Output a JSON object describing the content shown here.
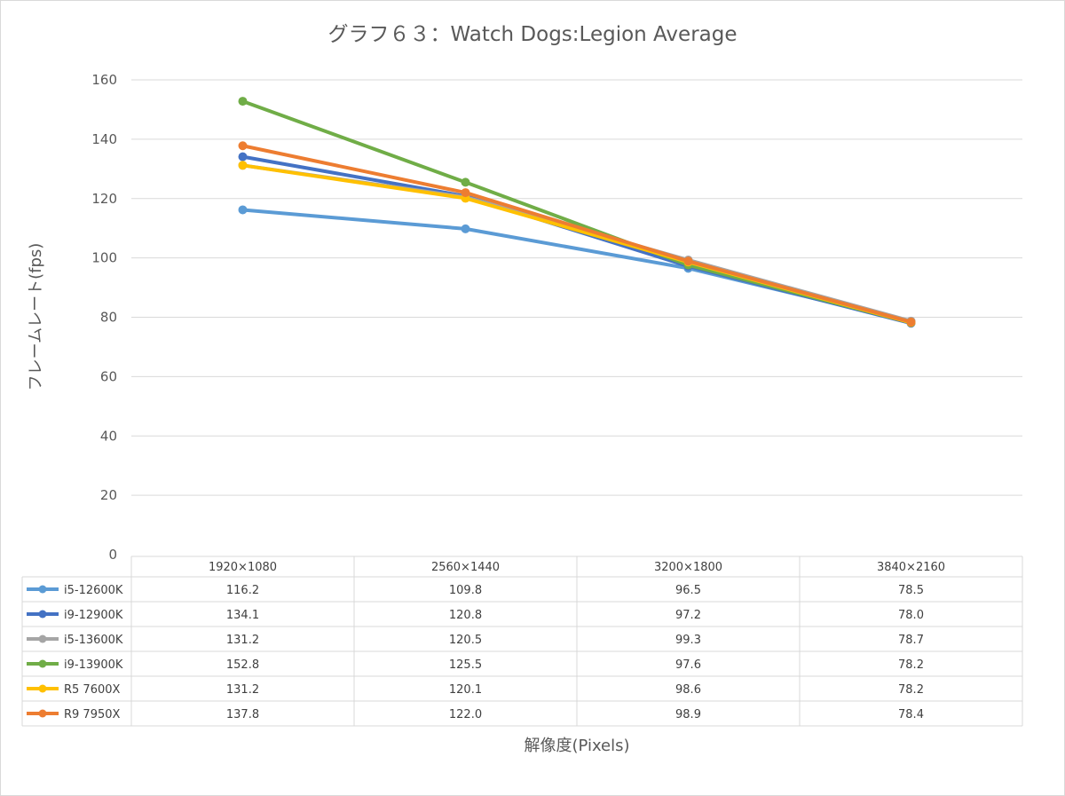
{
  "chart_data": {
    "type": "line",
    "title": "グラフ６３：Watch Dogs:Legion Average",
    "xlabel": "解像度(Pixels)",
    "ylabel": "フレームレート(fps)",
    "ylim": [
      0,
      160
    ],
    "yticks": [
      0,
      20,
      40,
      60,
      80,
      100,
      120,
      140,
      160
    ],
    "grid": true,
    "legend": "data-table",
    "categories": [
      "1920×1080",
      "2560×1440",
      "3200×1800",
      "3840×2160"
    ],
    "series": [
      {
        "name": "i5-12600K",
        "color": "#5b9bd5",
        "values": [
          116.2,
          109.8,
          96.5,
          78.5
        ],
        "labels": [
          "116.2",
          "109.8",
          "96.5",
          "78.5"
        ]
      },
      {
        "name": "i9-12900K",
        "color": "#4472c4",
        "values": [
          134.1,
          120.8,
          97.2,
          78.0
        ],
        "labels": [
          "134.1",
          "120.8",
          "97.2",
          "78.0"
        ]
      },
      {
        "name": "i5-13600K",
        "color": "#a5a5a5",
        "values": [
          131.2,
          120.5,
          99.3,
          78.7
        ],
        "labels": [
          "131.2",
          "120.5",
          "99.3",
          "78.7"
        ]
      },
      {
        "name": "i9-13900K",
        "color": "#70ad47",
        "values": [
          152.8,
          125.5,
          97.6,
          78.2
        ],
        "labels": [
          "152.8",
          "125.5",
          "97.6",
          "78.2"
        ]
      },
      {
        "name": "R5 7600X",
        "color": "#ffc000",
        "values": [
          131.2,
          120.1,
          98.6,
          78.2
        ],
        "labels": [
          "131.2",
          "120.1",
          "98.6",
          "78.2"
        ]
      },
      {
        "name": "R9 7950X",
        "color": "#ed7d31",
        "values": [
          137.8,
          122.0,
          98.9,
          78.4
        ],
        "labels": [
          "137.8",
          "122.0",
          "98.9",
          "78.4"
        ]
      }
    ]
  }
}
